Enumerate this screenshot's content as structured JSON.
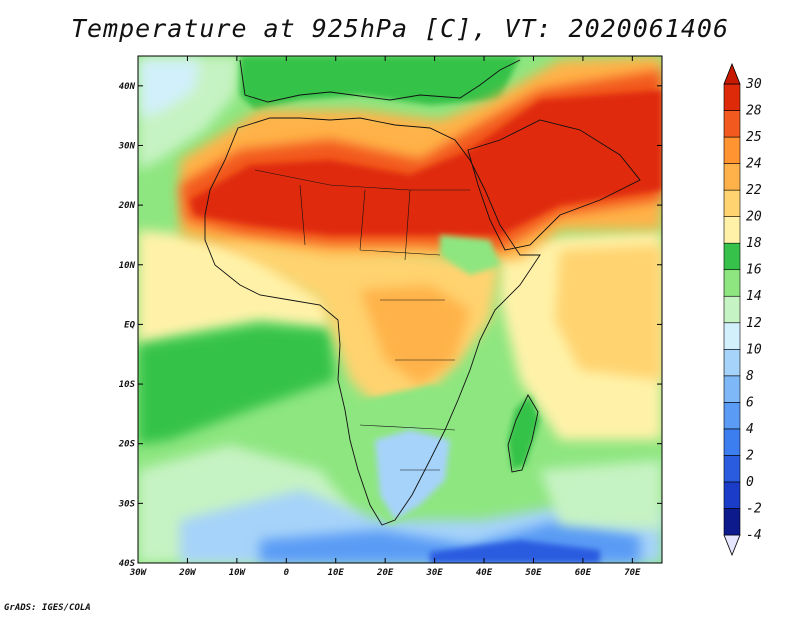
{
  "title": "Temperature at 925hPa [C], VT: 2020061406",
  "credit": "GrADS: IGES/COLA",
  "map": {
    "projection": "lat-lon",
    "lon_range": [
      -30,
      76
    ],
    "lat_range": [
      -40,
      45
    ],
    "lon_ticks": [
      {
        "value": -30,
        "label": "30W"
      },
      {
        "value": -20,
        "label": "20W"
      },
      {
        "value": -10,
        "label": "10W"
      },
      {
        "value": 0,
        "label": "0"
      },
      {
        "value": 10,
        "label": "10E"
      },
      {
        "value": 20,
        "label": "20E"
      },
      {
        "value": 30,
        "label": "30E"
      },
      {
        "value": 40,
        "label": "40E"
      },
      {
        "value": 50,
        "label": "50E"
      },
      {
        "value": 60,
        "label": "60E"
      },
      {
        "value": 70,
        "label": "70E"
      }
    ],
    "lat_ticks": [
      {
        "value": 40,
        "label": "40N"
      },
      {
        "value": 30,
        "label": "30N"
      },
      {
        "value": 20,
        "label": "20N"
      },
      {
        "value": 10,
        "label": "10N"
      },
      {
        "value": 0,
        "label": "EQ"
      },
      {
        "value": -10,
        "label": "10S"
      },
      {
        "value": -20,
        "label": "20S"
      },
      {
        "value": -30,
        "label": "30S"
      },
      {
        "value": -40,
        "label": "40S"
      }
    ],
    "variable": "Temperature at 925hPa",
    "units": "C",
    "valid_time": "2020061406"
  },
  "colorbar": {
    "levels": [
      -4,
      -2,
      0,
      2,
      4,
      6,
      8,
      10,
      12,
      14,
      16,
      18,
      20,
      22,
      24,
      25,
      28,
      30
    ],
    "labels": [
      "-4",
      "-2",
      "0",
      "2",
      "4",
      "6",
      "8",
      "10",
      "12",
      "14",
      "16",
      "18",
      "20",
      "22",
      "24",
      "25",
      "28",
      "30"
    ],
    "colors": [
      "#e6e6ff",
      "#0d1a8c",
      "#1a3cc8",
      "#2a5ce0",
      "#3c7ef0",
      "#5a9bf5",
      "#7fb8f7",
      "#a6d3f9",
      "#d2f0fb",
      "#c6f3c3",
      "#8ee680",
      "#36c24a",
      "#fff2a8",
      "#ffd370",
      "#ffb24a",
      "#ff9430",
      "#f2591e",
      "#df2a0a",
      "#c81a00"
    ]
  },
  "field_colors": {
    "ocean_cool": "#8ee680",
    "ocean_mid": "#36c24a",
    "ocean_pale": "#c6f3c3",
    "cold": "#a6d3f9",
    "colder": "#5a9bf5",
    "coldest": "#2a5ce0",
    "warm": "#ffd370",
    "warmer": "#ffb24a",
    "hot": "#f2591e",
    "hottest": "#df2a0a",
    "pale_yellow": "#fff2a8",
    "pale_cyan": "#d2f0fb"
  }
}
